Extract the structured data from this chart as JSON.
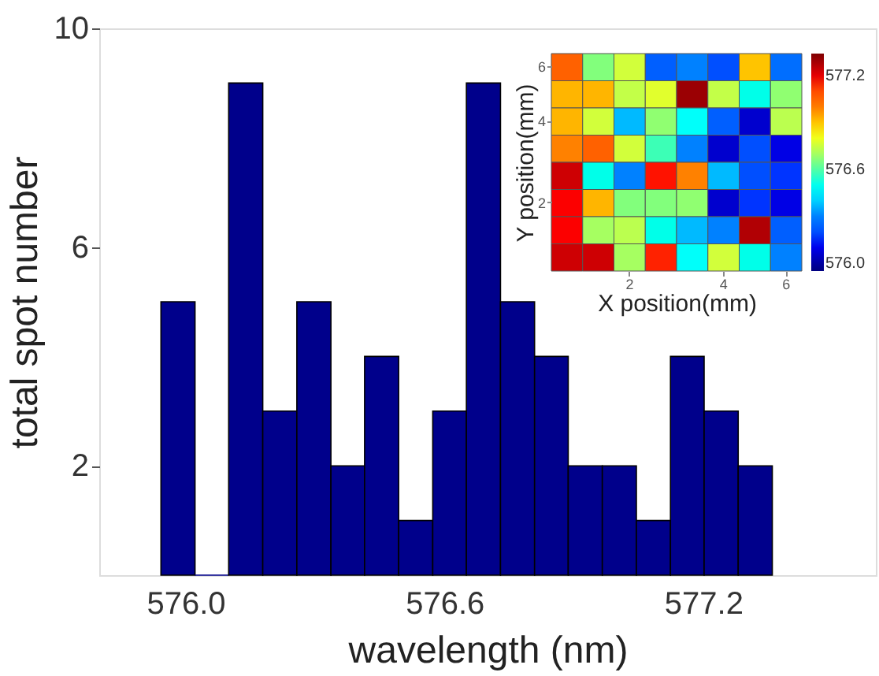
{
  "chart_data": [
    {
      "type": "histogram",
      "xlabel": "wavelength (nm)",
      "ylabel": "total spot number",
      "bins": [
        575.943,
        576.022,
        576.1,
        576.179,
        576.258,
        576.337,
        576.415,
        576.494,
        576.573,
        576.651,
        576.73,
        576.809,
        576.887,
        576.966,
        577.045,
        577.124,
        577.202,
        577.281,
        577.36
      ],
      "values": [
        5,
        0,
        9,
        3,
        5,
        2,
        4,
        1,
        3,
        9,
        5,
        4,
        2,
        2,
        1,
        4,
        3,
        2
      ],
      "color": "#00008b",
      "xlim": [
        575.8,
        577.6
      ],
      "xticks": [
        {
          "value": 576,
          "label": "576.0"
        },
        {
          "value": 576.6,
          "label": "576.6"
        },
        {
          "value": 577.2,
          "label": "577.2"
        }
      ],
      "ylim": [
        0,
        10
      ],
      "yticks": [
        2,
        6,
        10
      ],
      "grid": false
    },
    {
      "type": "heatmap",
      "xlabel": "X position(mm)",
      "ylabel": "Y position(mm)",
      "categories": [
        null,
        null,
        "2",
        null,
        null,
        "4",
        null,
        "6"
      ],
      "y_categories": [
        "6",
        null,
        "4",
        null,
        null,
        "2",
        null,
        null
      ],
      "cells": [
        [
          577.06,
          576.65,
          576.76,
          576.23,
          576.3,
          576.2,
          576.9,
          576.26
        ],
        [
          576.92,
          576.92,
          576.74,
          576.78,
          577.3,
          576.74,
          576.51,
          576.67
        ],
        [
          576.92,
          576.76,
          576.37,
          576.67,
          576.48,
          576.23,
          576.06,
          576.73
        ],
        [
          576.99,
          577.06,
          576.76,
          576.58,
          576.3,
          576.06,
          576.2,
          576.09
        ],
        [
          577.23,
          576.51,
          576.3,
          577.16,
          576.99,
          576.37,
          576.2,
          576.16
        ],
        [
          577.17,
          576.92,
          576.65,
          576.65,
          576.67,
          576.06,
          576.16,
          576.09
        ],
        [
          577.17,
          576.7,
          576.73,
          576.51,
          576.37,
          576.3,
          577.27,
          576.23
        ],
        [
          577.23,
          577.23,
          576.7,
          577.15,
          576.48,
          576.76,
          576.51,
          576.3
        ]
      ],
      "clim": [
        575.95,
        577.34
      ],
      "cticks": [
        {
          "value": 576,
          "label": "576.0"
        },
        {
          "value": 576.6,
          "label": "576.6"
        },
        {
          "value": 577.2,
          "label": "577.2"
        }
      ]
    }
  ]
}
